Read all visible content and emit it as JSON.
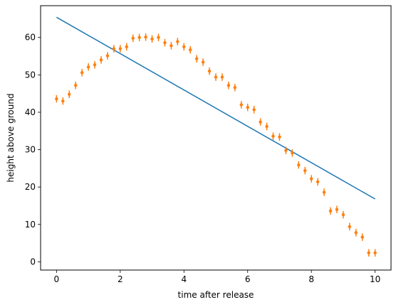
{
  "chart_data": {
    "type": "scatter",
    "xlabel": "time after release",
    "ylabel": "height above ground",
    "xlim": [
      -0.5,
      10.5
    ],
    "ylim": [
      -2.2,
      68.5
    ],
    "xticks": [
      0,
      2,
      4,
      6,
      8,
      10
    ],
    "yticks": [
      0,
      10,
      20,
      30,
      40,
      50,
      60
    ],
    "grid": false,
    "series": [
      {
        "kind": "line",
        "color": "#1f77b4",
        "x": [
          0,
          10
        ],
        "y": [
          65.4,
          16.8
        ]
      },
      {
        "kind": "errorbar",
        "color": "#ff7f0e",
        "yerr": 1.0,
        "x": [
          0.0,
          0.2,
          0.4,
          0.6,
          0.8,
          1.0,
          1.2,
          1.4,
          1.6,
          1.8,
          2.0,
          2.2,
          2.4,
          2.6,
          2.8,
          3.0,
          3.2,
          3.4,
          3.6,
          3.8,
          4.0,
          4.2,
          4.4,
          4.6,
          4.8,
          5.0,
          5.2,
          5.4,
          5.6,
          5.8,
          6.0,
          6.2,
          6.4,
          6.6,
          6.8,
          7.0,
          7.2,
          7.4,
          7.6,
          7.8,
          8.0,
          8.2,
          8.4,
          8.6,
          8.8,
          9.0,
          9.2,
          9.4,
          9.6,
          9.8,
          10.0
        ],
        "y": [
          43.6,
          43.0,
          44.8,
          47.2,
          50.6,
          52.1,
          52.7,
          54.0,
          55.1,
          57.0,
          57.0,
          57.5,
          59.8,
          60.0,
          60.1,
          59.6,
          60.0,
          58.6,
          57.8,
          58.9,
          57.5,
          56.7,
          54.3,
          53.4,
          51.0,
          49.4,
          49.4,
          47.2,
          46.6,
          42.0,
          41.3,
          40.7,
          37.4,
          36.2,
          33.6,
          33.4,
          29.8,
          29.1,
          25.9,
          24.4,
          22.2,
          21.4,
          18.6,
          13.6,
          14.0,
          12.6,
          9.4,
          7.8,
          6.6,
          2.4,
          2.4
        ]
      }
    ]
  }
}
